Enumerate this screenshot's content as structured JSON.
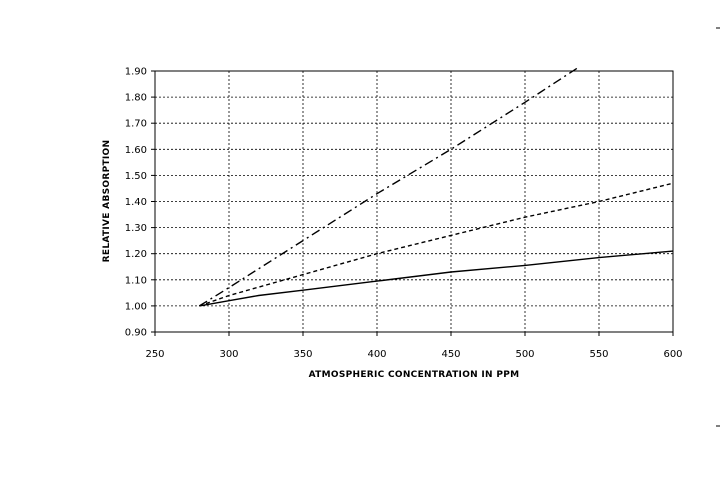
{
  "chart_data": {
    "type": "line",
    "title": "",
    "xlabel": "ATMOSPHERIC CONCENTRATION IN PPM",
    "ylabel": "RELATIVE ABSORPTION",
    "xlim": [
      250,
      600
    ],
    "ylim": [
      0.9,
      1.9
    ],
    "xticks": [
      "250",
      "300",
      "350",
      "400",
      "450",
      "500",
      "550",
      "600"
    ],
    "yticks": [
      "0.90",
      "1.00",
      "1.10",
      "1.20",
      "1.30",
      "1.40",
      "1.50",
      "1.60",
      "1.70",
      "1.80",
      "1.90"
    ],
    "grid": true,
    "legend": "none",
    "series": [
      {
        "style": "dash-dot",
        "x": [
          280,
          300,
          350,
          400,
          450,
          500,
          535
        ],
        "y": [
          1.0,
          1.07,
          1.25,
          1.43,
          1.6,
          1.78,
          1.91
        ]
      },
      {
        "style": "dashed",
        "x": [
          280,
          300,
          350,
          400,
          450,
          500,
          550,
          600
        ],
        "y": [
          1.0,
          1.04,
          1.12,
          1.2,
          1.27,
          1.34,
          1.4,
          1.47
        ]
      },
      {
        "style": "solid",
        "x": [
          280,
          300,
          320,
          350,
          400,
          450,
          500,
          550,
          600
        ],
        "y": [
          1.0,
          1.02,
          1.04,
          1.06,
          1.095,
          1.13,
          1.155,
          1.185,
          1.21
        ]
      }
    ]
  }
}
